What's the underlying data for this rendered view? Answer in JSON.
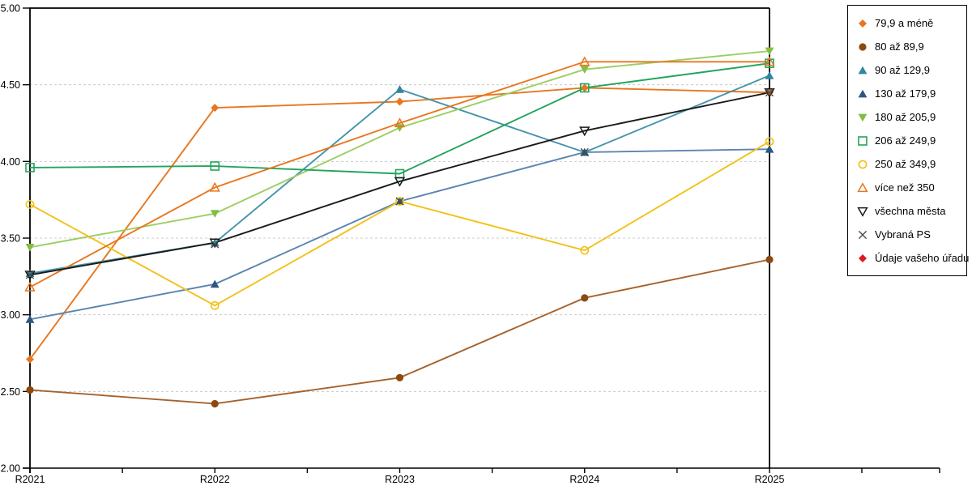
{
  "chart_data": {
    "type": "line",
    "title": "",
    "xlabel": "",
    "ylabel": "",
    "x_categories": [
      "R2021",
      "R2022",
      "R2023",
      "R2024",
      "R2025"
    ],
    "ylim": [
      2.0,
      5.0
    ],
    "y_tick_labels": [
      "2.00",
      "2.50",
      "3.00",
      "3.50",
      "4.00",
      "4.50",
      "5.00"
    ],
    "y_tick_values": [
      2.0,
      2.5,
      3.0,
      3.5,
      4.0,
      4.5,
      5.0
    ],
    "grid": "horizontal-dashed",
    "legend_position": "top-right",
    "series": [
      {
        "name": "79,9 a méně",
        "marker": "diamond-filled",
        "color": "#E8761E",
        "line": true,
        "values": [
          2.71,
          4.35,
          4.39,
          4.48,
          4.45
        ]
      },
      {
        "name": "80 až 89,9",
        "marker": "circle-filled",
        "color": "#8C4A10",
        "line_color": "#A5622D",
        "line": true,
        "values": [
          2.51,
          2.42,
          2.59,
          3.11,
          3.36
        ]
      },
      {
        "name": "90 až 129,9",
        "marker": "triangle-up-filled",
        "color": "#31859C",
        "line_color": "#4594AA",
        "line": true,
        "values": [
          3.27,
          3.47,
          4.47,
          4.06,
          4.56
        ]
      },
      {
        "name": "130 až 179,9",
        "marker": "triangle-up-filled",
        "color": "#2C5784",
        "line_color": "#5B84B1",
        "line": true,
        "values": [
          2.97,
          3.2,
          3.74,
          4.06,
          4.08
        ]
      },
      {
        "name": "180 až 205,9",
        "marker": "triangle-down-filled",
        "color": "#83BE41",
        "line_color": "#9CCE62",
        "line": true,
        "values": [
          3.44,
          3.66,
          4.22,
          4.6,
          4.72
        ]
      },
      {
        "name": "206 až 249,9",
        "marker": "square-open",
        "color": "#22A45B",
        "line": true,
        "values": [
          3.96,
          3.97,
          3.92,
          4.48,
          4.64
        ]
      },
      {
        "name": "250 až 349,9",
        "marker": "circle-open",
        "color": "#F2C118",
        "line": true,
        "values": [
          3.72,
          3.06,
          3.74,
          3.42,
          4.13
        ]
      },
      {
        "name": "více než 350",
        "marker": "triangle-up-open",
        "color": "#E8761E",
        "line": true,
        "values": [
          3.18,
          3.83,
          4.25,
          4.65,
          4.65
        ]
      },
      {
        "name": "všechna města",
        "marker": "triangle-down-open",
        "color": "#1A1A1A",
        "line": true,
        "values": [
          3.26,
          3.47,
          3.87,
          4.2,
          4.45
        ]
      },
      {
        "name": "Vybraná PS",
        "marker": "x",
        "color": "#4A4A4A",
        "line": false,
        "values": [
          3.26,
          3.46,
          3.74,
          4.06,
          4.45
        ]
      },
      {
        "name": "Údaje vašeho úřadu",
        "marker": "diamond-filled",
        "color": "#DD1A21",
        "line": false,
        "values": []
      }
    ],
    "colors": {
      "grid": "#C9C9C9",
      "axis": "#000000",
      "background": "#FFFFFF"
    }
  }
}
